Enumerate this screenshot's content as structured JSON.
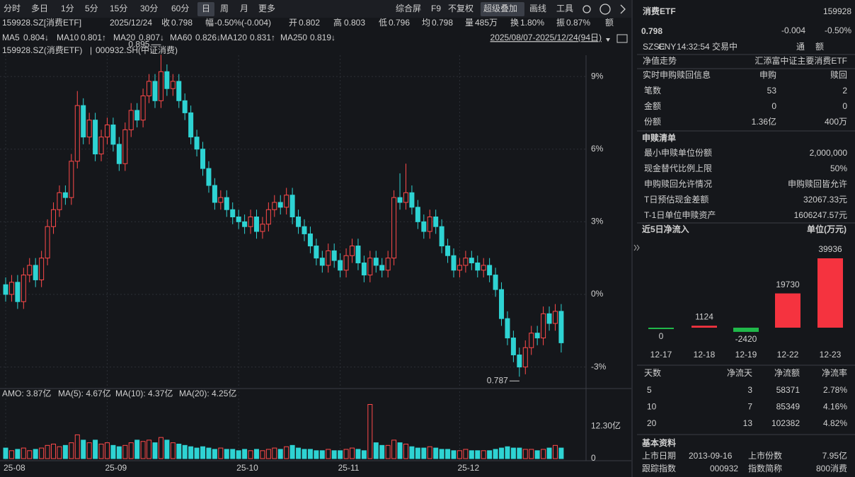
{
  "toolbar": {
    "periods": [
      "分时",
      "多日",
      "1分",
      "5分",
      "15分",
      "30分",
      "60分",
      "日",
      "周",
      "月",
      "更多"
    ],
    "tools": [
      "综合屏",
      "F9",
      "不复权",
      "超级叠加",
      "画线",
      "工具"
    ]
  },
  "quote_bar": {
    "symbol": "159928.SZ[消费ETF]",
    "date": "2025/12/24",
    "items": [
      {
        "label": "收",
        "value": "0.798",
        "color": "#2fd25a"
      },
      {
        "label": "幅",
        "value": "-0.50%(-0.004)",
        "color": "#2fd25a"
      },
      {
        "label": "开",
        "value": "0.802",
        "color": "#e8e8e8"
      },
      {
        "label": "高",
        "value": "0.803",
        "color": "#ff4a4a"
      },
      {
        "label": "低",
        "value": "0.796",
        "color": "#2fd25a"
      },
      {
        "label": "均",
        "value": "0.798",
        "color": "#2fd25a"
      },
      {
        "label": "量",
        "value": "485万",
        "color": "#e8e8e8"
      },
      {
        "label": "换",
        "value": "1.80%",
        "color": "#e8e8e8"
      },
      {
        "label": "振",
        "value": "0.87%",
        "color": "#e8e8e8"
      },
      {
        "label": "额"
      }
    ]
  },
  "ma_bar": {
    "items": [
      {
        "label": "MA5",
        "value": "0.804↓",
        "color": "#f0c070"
      },
      {
        "label": "MA10",
        "value": "0.801↑",
        "color": "#f0e040"
      },
      {
        "label": "MA20",
        "value": "0.807↓",
        "color": "#e050e0"
      },
      {
        "label": "MA60",
        "value": "0.826↓",
        "color": "#40c060"
      },
      {
        "label": "MA120",
        "value": "0.831↑",
        "color": "#40d0e0"
      },
      {
        "label": "MA250",
        "value": "0.819↓",
        "color": "#5080ff"
      }
    ],
    "range": "2025/08/07-2025/12/24(94日)"
  },
  "overlay_legend": [
    "159928.SZ(消费ETF)",
    "|",
    "000932.SH(中证消费)"
  ],
  "chart_data": [
    {
      "type": "candlestick",
      "up_color": "#ff4a4a",
      "down_color": "#2ed3d3",
      "grid": true,
      "ylim": [
        -3.86,
        9.88
      ],
      "yticks": [
        {
          "value": 9,
          "label": "9%"
        },
        {
          "value": 6,
          "label": "6%"
        },
        {
          "value": 3,
          "label": "3%"
        },
        {
          "value": 0,
          "label": "0%"
        },
        {
          "value": -3,
          "label": "-3%"
        }
      ],
      "open": [
        0.4,
        0.0,
        0.5,
        -0.3,
        0.8,
        1.2,
        0.6,
        1.5,
        2.8,
        3.5,
        4.2,
        4.0,
        5.5,
        7.8,
        6.5,
        7.2,
        5.8,
        6.5,
        7.0,
        6.2,
        5.4,
        6.8,
        7.6,
        7.2,
        8.2,
        8.8,
        8.0,
        9.2,
        8.5,
        8.8,
        8.0,
        7.5,
        6.5,
        6.0,
        5.2,
        4.5,
        3.8,
        4.0,
        3.5,
        3.2,
        3.0,
        2.8,
        3.2,
        2.6,
        2.9,
        3.5,
        3.8,
        3.6,
        4.1,
        3.2,
        2.8,
        2.5,
        2.0,
        1.5,
        1.2,
        1.8,
        1.4,
        1.0,
        1.6,
        2.0,
        1.3,
        0.8,
        1.5,
        1.2,
        1.0,
        1.5,
        4.0,
        3.8,
        4.2,
        3.6,
        3.0,
        2.6,
        3.2,
        2.8,
        2.0,
        1.6,
        1.0,
        1.2,
        1.5,
        1.3,
        1.0,
        1.2,
        0.8,
        0.2,
        -1.0,
        -1.8,
        -2.5,
        -3.0,
        -2.2,
        -1.6,
        -1.8,
        -0.8,
        -1.2,
        -0.7
      ],
      "high": [
        0.7,
        0.8,
        0.8,
        1.1,
        1.5,
        1.5,
        1.8,
        3.1,
        3.8,
        4.5,
        4.5,
        5.8,
        8.4,
        8.1,
        7.5,
        7.5,
        6.8,
        7.3,
        7.3,
        6.5,
        7.1,
        7.9,
        7.9,
        8.5,
        9.1,
        9.1,
        9.9,
        9.5,
        9.1,
        9.1,
        8.3,
        7.8,
        6.8,
        6.3,
        5.5,
        4.8,
        4.3,
        4.3,
        3.8,
        3.5,
        3.3,
        3.5,
        3.5,
        3.2,
        3.8,
        4.1,
        4.1,
        4.4,
        4.4,
        3.5,
        3.1,
        2.8,
        2.3,
        1.8,
        2.1,
        2.1,
        1.7,
        1.9,
        2.3,
        2.3,
        1.6,
        1.8,
        1.8,
        1.5,
        1.8,
        4.3,
        5.0,
        5.4,
        4.5,
        3.9,
        3.3,
        3.5,
        3.5,
        3.1,
        2.3,
        1.9,
        1.5,
        1.8,
        1.8,
        1.6,
        1.5,
        1.5,
        1.1,
        0.5,
        -0.7,
        -1.5,
        -2.2,
        -1.9,
        -1.3,
        -1.3,
        -0.5,
        -0.5,
        -0.4,
        -0.4
      ],
      "low": [
        -0.3,
        -0.3,
        -0.6,
        -0.6,
        0.5,
        0.3,
        0.3,
        1.2,
        2.5,
        3.2,
        3.7,
        3.7,
        5.2,
        6.2,
        6.2,
        5.5,
        5.5,
        6.2,
        5.9,
        5.1,
        5.1,
        6.5,
        6.9,
        6.9,
        7.9,
        7.7,
        7.7,
        8.2,
        8.2,
        7.7,
        7.2,
        6.2,
        5.7,
        4.9,
        4.2,
        3.5,
        3.5,
        3.2,
        2.9,
        2.7,
        2.5,
        2.5,
        2.3,
        2.3,
        2.6,
        3.2,
        3.3,
        3.3,
        2.9,
        2.5,
        2.2,
        1.7,
        1.2,
        0.9,
        0.9,
        1.1,
        0.7,
        0.7,
        1.3,
        1.0,
        0.5,
        0.5,
        0.9,
        0.7,
        0.7,
        1.2,
        3.5,
        3.5,
        3.3,
        2.7,
        2.3,
        2.3,
        2.5,
        1.7,
        1.3,
        0.7,
        0.7,
        0.9,
        1.0,
        0.7,
        0.7,
        0.5,
        -0.1,
        -1.3,
        -2.1,
        -2.8,
        -3.4,
        -3.3,
        -2.5,
        -2.1,
        -2.1,
        -1.5,
        -1.5,
        -2.4
      ],
      "close": [
        0.0,
        0.5,
        -0.3,
        0.8,
        1.2,
        0.6,
        1.5,
        2.8,
        3.5,
        4.2,
        4.0,
        5.5,
        7.8,
        6.5,
        7.2,
        5.8,
        6.5,
        7.0,
        6.2,
        5.4,
        6.8,
        7.6,
        7.2,
        8.2,
        8.8,
        8.0,
        9.2,
        8.5,
        8.8,
        8.0,
        7.5,
        6.5,
        6.0,
        5.2,
        4.5,
        3.8,
        4.0,
        3.5,
        3.2,
        3.0,
        2.8,
        3.2,
        2.6,
        2.9,
        3.5,
        3.8,
        3.6,
        4.1,
        3.2,
        2.8,
        2.5,
        2.0,
        1.5,
        1.2,
        1.8,
        1.4,
        1.0,
        1.6,
        2.0,
        1.3,
        0.8,
        1.5,
        1.2,
        1.0,
        1.5,
        4.0,
        3.8,
        4.2,
        3.6,
        3.0,
        2.6,
        3.2,
        2.8,
        2.0,
        1.6,
        1.0,
        1.2,
        1.5,
        1.3,
        1.0,
        1.2,
        0.8,
        0.2,
        -1.0,
        -1.8,
        -2.5,
        -3.0,
        -2.2,
        -1.6,
        -1.8,
        -0.8,
        -1.2,
        -0.7,
        -2.0
      ],
      "annotations": [
        {
          "label": "0.895",
          "x": 26,
          "color": "#ff4a4a"
        },
        {
          "label": "0.787",
          "x": 86,
          "color": "#2fd25a"
        }
      ]
    },
    {
      "type": "volume",
      "up_color": "#ff4a4a",
      "down_color": "#2ed3d3",
      "legend": [
        {
          "label": "AMO: 3.87亿",
          "color": "#e0e0e0"
        },
        {
          "label": "MA(5): 4.67亿",
          "color": "#ffffff"
        },
        {
          "label": "MA(10): 4.37亿",
          "color": "#f0a020"
        },
        {
          "label": "MA(20): 4.25亿",
          "color": "#d050d0"
        }
      ],
      "ylim": [
        0,
        20.9
      ],
      "yticks": [
        0,
        {
          "value": 12.3,
          "label": "12.30亿"
        }
      ],
      "xticks": [
        {
          "value": 0,
          "label": "25-08"
        },
        {
          "value": 17,
          "label": "25-09"
        },
        {
          "value": 39,
          "label": "25-10"
        },
        {
          "value": 56,
          "label": "25-11"
        },
        {
          "value": 76,
          "label": "25-12"
        }
      ],
      "values": [
        4,
        3,
        3.5,
        4,
        3,
        3.5,
        4,
        5,
        5.5,
        4.5,
        5,
        6,
        9,
        7,
        6,
        7,
        5.5,
        6,
        5,
        4.5,
        5,
        6,
        7,
        6.5,
        7,
        6,
        8,
        7,
        6,
        5.5,
        5,
        4.5,
        4,
        4.5,
        4,
        3.5,
        4,
        3.5,
        3.5,
        3,
        3.5,
        3,
        3.5,
        3,
        3.5,
        4,
        3.5,
        4.5,
        5,
        4,
        3.5,
        3.5,
        3,
        3,
        3.5,
        3,
        3,
        3.5,
        4,
        3.5,
        3,
        20.5,
        6,
        5,
        5,
        7,
        6,
        5.5,
        4.5,
        4,
        4,
        4.5,
        4,
        3.5,
        3.5,
        3,
        3,
        3.5,
        3,
        3,
        3,
        3,
        3.5,
        4,
        4.5,
        4,
        4,
        3.5,
        3.5,
        3,
        3.5,
        4,
        5,
        4
      ]
    },
    {
      "type": "bar",
      "title": "近5日净流入",
      "unit": "单位(万元)",
      "categories": [
        "12-17",
        "12-18",
        "12-19",
        "12-22",
        "12-23"
      ],
      "values": [
        0,
        1124,
        -2420,
        19730,
        39936
      ],
      "positive_color": "#f5333f",
      "negative_color": "#20b84a"
    }
  ],
  "panel": {
    "name": "消费ETF",
    "code": "159928",
    "price": "0.798",
    "change": "-0.004",
    "change_pct": "-0.50%",
    "status": [
      "SZSE",
      "CNY",
      "14:32:54",
      "交易中"
    ],
    "badges": [
      "通",
      "额"
    ],
    "nav": {
      "label": "净值走势",
      "value": "汇添富中证主要消费ETF"
    },
    "realtime": {
      "header": [
        "实时申购赎回信息",
        "申购",
        "赎回"
      ],
      "rows": [
        [
          "笔数",
          "53",
          "2"
        ],
        [
          "金额",
          "0",
          "0"
        ],
        [
          "份额",
          "1.36亿",
          "400万"
        ]
      ]
    },
    "list": {
      "title": "申赎清单",
      "rows": [
        [
          "最小申赎单位份额",
          "2,000,000"
        ],
        [
          "现金替代比例上限",
          "50%"
        ],
        [
          "申购赎回允许情况",
          "申购赎回皆允许"
        ],
        [
          "T日预估现金差额",
          "32067.33元"
        ],
        [
          "T-1日单位申赎资产",
          "1606247.57元"
        ]
      ]
    },
    "flow_table": {
      "header": [
        "天数",
        "净流天",
        "净流额",
        "净流率"
      ],
      "rows": [
        [
          "5",
          "3",
          "58371",
          "2.78%"
        ],
        [
          "10",
          "7",
          "85349",
          "4.16%"
        ],
        [
          "20",
          "13",
          "102382",
          "4.82%"
        ]
      ]
    },
    "basic": {
      "title": "基本资料",
      "rows": [
        [
          "上市日期",
          "2013-09-16",
          "上市份数",
          "7.95亿"
        ],
        [
          "跟踪指数",
          "000932",
          "指数简称",
          "800消费"
        ]
      ]
    }
  }
}
